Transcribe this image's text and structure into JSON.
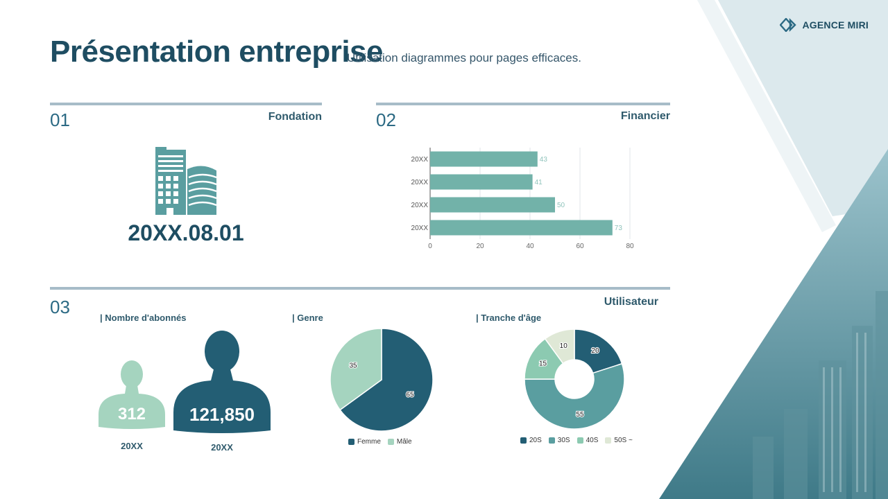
{
  "brand": {
    "name": "AGENCE MIRI"
  },
  "header": {
    "title": "Présentation entreprise",
    "subtitle": "Utilisation diagrammes pour pages efficaces."
  },
  "sections": {
    "s1": {
      "number": "01",
      "label": "Fondation",
      "date": "20XX.08.01"
    },
    "s2": {
      "number": "02",
      "label": "Financier"
    },
    "s3": {
      "number": "03",
      "label": "Utilisateur",
      "subscribers_label": "| Nombre d'abonnés",
      "gender_label": "| Genre",
      "age_label": "| Tranche d'âge",
      "persons": [
        {
          "value": "312",
          "caption": "20XX"
        },
        {
          "value": "121,850",
          "caption": "20XX"
        }
      ]
    }
  },
  "colors": {
    "dark": "#235e74",
    "teal": "#72b2a9",
    "teal_mid": "#5a9ea0",
    "mint": "#a5d4bf",
    "cream": "#dfe8d6",
    "navy": "#1e4d62"
  },
  "chart_data": [
    {
      "type": "bar",
      "orientation": "horizontal",
      "categories": [
        "20XX",
        "20XX",
        "20XX",
        "20XX"
      ],
      "values": [
        43,
        41,
        50,
        73
      ],
      "xlim": [
        0,
        80
      ],
      "xticks": [
        "0",
        "20",
        "40",
        "60",
        "80"
      ],
      "grid": true,
      "data_labels": [
        "43",
        "41",
        "50",
        "73"
      ]
    },
    {
      "type": "pie",
      "categories": [
        "Femme",
        "Mâle"
      ],
      "values": [
        65,
        35
      ],
      "legend": "bottom",
      "data_labels": [
        "65",
        "35"
      ]
    },
    {
      "type": "pie",
      "donut": true,
      "categories": [
        "20S",
        "30S",
        "40S",
        "50S ~"
      ],
      "values": [
        20,
        55,
        15,
        10
      ],
      "legend": "bottom",
      "data_labels": [
        "20",
        "55",
        "15",
        "10"
      ]
    }
  ]
}
